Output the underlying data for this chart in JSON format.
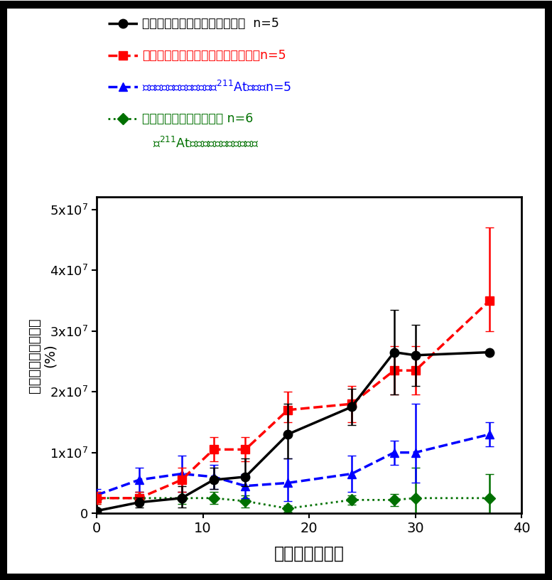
{
  "background_color": "#ffffff",
  "plot_bg_color": "#ffffff",
  "xlabel": "治療開始後日数",
  "xlim": [
    0,
    40
  ],
  "ylim": [
    0,
    52000000.0
  ],
  "xticks": [
    0,
    10,
    20,
    30,
    40
  ],
  "yticks": [
    0,
    10000000.0,
    20000000.0,
    30000000.0,
    40000000.0,
    50000000.0
  ],
  "series": [
    {
      "color": "#000000",
      "marker": "o",
      "linestyle": "-",
      "x": [
        0,
        4,
        8,
        11,
        14,
        18,
        24,
        28,
        30,
        37
      ],
      "y": [
        400000.0,
        1800000.0,
        2500000.0,
        5500000.0,
        6000000.0,
        13000000.0,
        17500000.0,
        26500000.0,
        26000000.0,
        26500000.0
      ],
      "yerr_low": [
        400000.0,
        800000.0,
        1500000.0,
        1500000.0,
        1500000.0,
        4000000.0,
        3000000.0,
        7000000.0,
        5000000.0,
        0
      ],
      "yerr_high": [
        400000.0,
        800000.0,
        2000000.0,
        2000000.0,
        3000000.0,
        5000000.0,
        3000000.0,
        7000000.0,
        5000000.0,
        0
      ]
    },
    {
      "color": "#ff0000",
      "marker": "s",
      "linestyle": "--",
      "x": [
        0,
        4,
        8,
        11,
        14,
        18,
        24,
        28,
        30,
        37
      ],
      "y": [
        2500000.0,
        2500000.0,
        5500000.0,
        10500000.0,
        10500000.0,
        17000000.0,
        18000000.0,
        23500000.0,
        23500000.0,
        35000000.0
      ],
      "yerr_low": [
        1000000.0,
        1000000.0,
        2000000.0,
        2000000.0,
        2000000.0,
        2000000.0,
        3000000.0,
        4000000.0,
        4000000.0,
        5000000.0
      ],
      "yerr_high": [
        1000000.0,
        1000000.0,
        2000000.0,
        2000000.0,
        2000000.0,
        3000000.0,
        3000000.0,
        4000000.0,
        4000000.0,
        12000000.0
      ]
    },
    {
      "color": "#0000ff",
      "marker": "^",
      "linestyle": "--",
      "x": [
        0,
        4,
        8,
        11,
        14,
        18,
        24,
        28,
        30,
        37
      ],
      "y": [
        3000000.0,
        5500000.0,
        6500000.0,
        6000000.0,
        4500000.0,
        5000000.0,
        6500000.0,
        10000000.0,
        10000000.0,
        13000000.0
      ],
      "yerr_low": [
        1000000.0,
        2000000.0,
        3000000.0,
        2000000.0,
        2000000.0,
        3000000.0,
        3000000.0,
        2000000.0,
        5000000.0,
        2000000.0
      ],
      "yerr_high": [
        1000000.0,
        2000000.0,
        3000000.0,
        2000000.0,
        2000000.0,
        4000000.0,
        3000000.0,
        2000000.0,
        8000000.0,
        2000000.0
      ]
    },
    {
      "color": "#007000",
      "marker": "D",
      "linestyle": ":",
      "x": [
        0,
        4,
        8,
        11,
        14,
        18,
        24,
        28,
        30,
        37
      ],
      "y": [
        2500000.0,
        2500000.0,
        2500000.0,
        2500000.0,
        2000000.0,
        800000.0,
        2200000.0,
        2200000.0,
        2500000.0,
        2500000.0
      ],
      "yerr_low": [
        1000000.0,
        1000000.0,
        1000000.0,
        1000000.0,
        1000000.0,
        500000.0,
        800000.0,
        1000000.0,
        5000000.0,
        4000000.0
      ],
      "yerr_high": [
        1000000.0,
        1000000.0,
        1000000.0,
        1000000.0,
        1000000.0,
        500000.0,
        800000.0,
        1000000.0,
        5000000.0,
        4000000.0
      ]
    }
  ],
  "legend": [
    {
      "color": "#000000",
      "linestyle": "-",
      "marker": "o",
      "label1": "治療対照群（生理食塩水投与）  n=5",
      "label2": null,
      "label1_color": "#000000"
    },
    {
      "color": "#ff0000",
      "linestyle": "--",
      "marker": "s",
      "label1": "抗体治療群（トラスツズマブ投与）n=5",
      "label2": null,
      "label1_color": "#ff0000"
    },
    {
      "color": "#0000ff",
      "linestyle": "--",
      "marker": "^",
      "label1": "アイソトープ単独治療群（$^{211}$At投与）n=5",
      "label2": null,
      "label1_color": "#0000ff"
    },
    {
      "color": "#007000",
      "linestyle": ":",
      "marker": "D",
      "label1": "標的アイソトープ治療群 n=6",
      "label2": "($^{211}$At−トラスツズマブ投与）",
      "label1_color": "#007000"
    }
  ],
  "ylabel_chars": [
    "がん",
    "細胞",
    "の発",
    "光輝",
    "度",
    "(%)"
  ],
  "border_color": "#000000"
}
